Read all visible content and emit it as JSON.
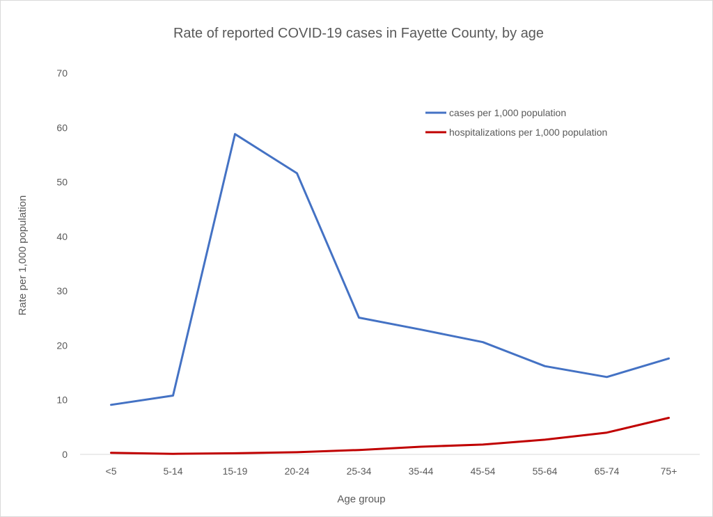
{
  "chart_data": {
    "type": "line",
    "title": "Rate of reported COVID-19 cases in Fayette County, by age",
    "xlabel": "Age group",
    "ylabel": "Rate per 1,000 population",
    "ylim": [
      0,
      70
    ],
    "yticks": [
      0,
      10,
      20,
      30,
      40,
      50,
      60,
      70
    ],
    "grid": false,
    "legend_position": "top-right",
    "categories": [
      "<5",
      "5-14",
      "15-19",
      "20-24",
      "25-34",
      "35-44",
      "45-54",
      "55-64",
      "65-74",
      "75+"
    ],
    "series": [
      {
        "name": "cases per 1,000 population",
        "color": "#4472c4",
        "values": [
          9.1,
          10.8,
          58.8,
          51.6,
          25.1,
          22.9,
          20.6,
          16.2,
          14.2,
          17.6
        ]
      },
      {
        "name": "hospitalizations per 1,000 population",
        "color": "#c00000",
        "values": [
          0.3,
          0.1,
          0.2,
          0.4,
          0.8,
          1.4,
          1.8,
          2.7,
          4.0,
          6.7
        ]
      }
    ]
  }
}
